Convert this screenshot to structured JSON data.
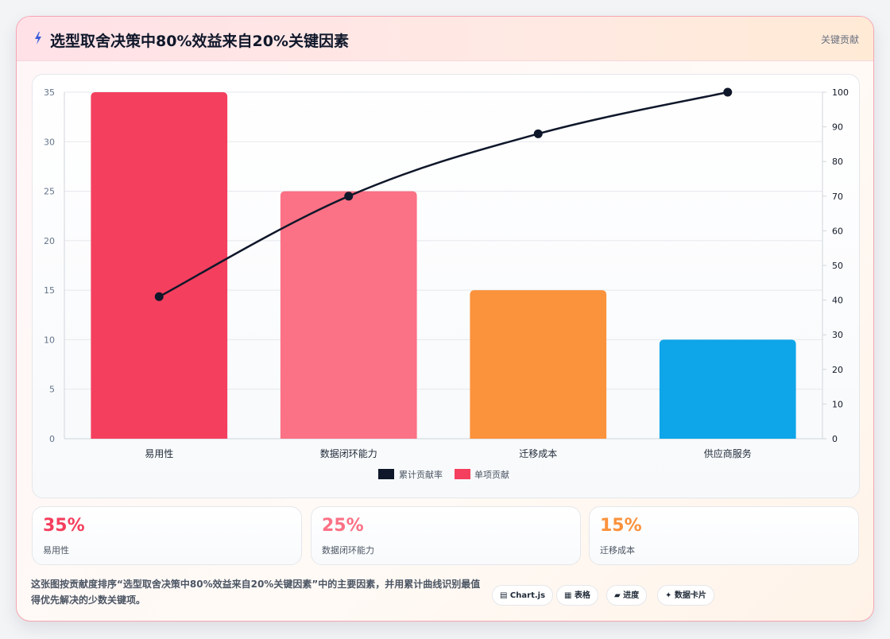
{
  "header": {
    "title": "选型取舍决策中80%效益来自20%关键因素",
    "tag": "关键贡献",
    "icon": "lightning-icon"
  },
  "chart_data": {
    "type": "bar",
    "categories": [
      "易用性",
      "数据闭环能力",
      "迁移成本",
      "供应商服务"
    ],
    "series": [
      {
        "name": "单项贡献",
        "type": "bar",
        "axis": "left",
        "values": [
          35,
          25,
          15,
          10
        ],
        "colors": [
          "#f43f5e",
          "#fb7185",
          "#fb923c",
          "#0ea5e9"
        ]
      },
      {
        "name": "累计贡献率",
        "type": "line",
        "axis": "right",
        "values": [
          41,
          70,
          88,
          100
        ],
        "color": "#0f172a"
      }
    ],
    "y_left": {
      "min": 0,
      "max": 35,
      "ticks": [
        0,
        5,
        10,
        15,
        20,
        25,
        30,
        35
      ]
    },
    "y_right": {
      "min": 0,
      "max": 100,
      "ticks": [
        0,
        10,
        20,
        30,
        40,
        50,
        60,
        70,
        80,
        90,
        100
      ]
    },
    "legend_position": "bottom",
    "grid": true
  },
  "stats": [
    {
      "value": "35%",
      "label": "易用性",
      "color": "#f43f5e"
    },
    {
      "value": "25%",
      "label": "数据闭环能力",
      "color": "#fb7185"
    },
    {
      "value": "15%",
      "label": "迁移成本",
      "color": "#fb923c"
    }
  ],
  "footnote": "这张图按贡献度排序“选型取舍决策中80%效益来自20%关键因素”中的主要因素，并用累计曲线识别最值得优先解决的少数关键项。",
  "pills": [
    {
      "label": "▤ Chart.js"
    },
    {
      "label": "▦ 表格"
    },
    {
      "label": "▰ 进度"
    },
    {
      "label": "✦ 数据卡片"
    }
  ]
}
